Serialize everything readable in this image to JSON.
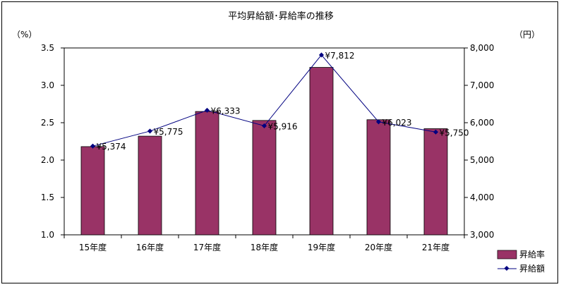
{
  "chart_data": {
    "type": "bar",
    "title": "平均昇給額･昇給率の推移",
    "left_unit": "（%）",
    "right_unit": "（円）",
    "categories": [
      "15年度",
      "16年度",
      "17年度",
      "18年度",
      "19年度",
      "20年度",
      "21年度"
    ],
    "left_axis": {
      "min": 1.0,
      "max": 3.5,
      "ticks": [
        "1.0",
        "1.5",
        "2.0",
        "2.5",
        "3.0",
        "3.5"
      ]
    },
    "right_axis": {
      "min": 3000,
      "max": 8000,
      "ticks": [
        "3,000",
        "4,000",
        "5,000",
        "6,000",
        "7,000",
        "8,000"
      ]
    },
    "series": [
      {
        "name": "昇給率",
        "kind": "bar",
        "axis": "left",
        "color": "#993366",
        "values": [
          2.18,
          2.32,
          2.65,
          2.53,
          3.24,
          2.54,
          2.42
        ]
      },
      {
        "name": "昇給額",
        "kind": "line",
        "axis": "right",
        "color": "#000080",
        "values": [
          5374,
          5775,
          6333,
          5916,
          7812,
          6023,
          5750
        ],
        "labels": [
          "¥5,374",
          "¥5,775",
          "¥6,333",
          "¥5,916",
          "¥7,812",
          "¥6,023",
          "¥5,750"
        ]
      }
    ],
    "legend_position": "bottom-right",
    "grid": false
  }
}
